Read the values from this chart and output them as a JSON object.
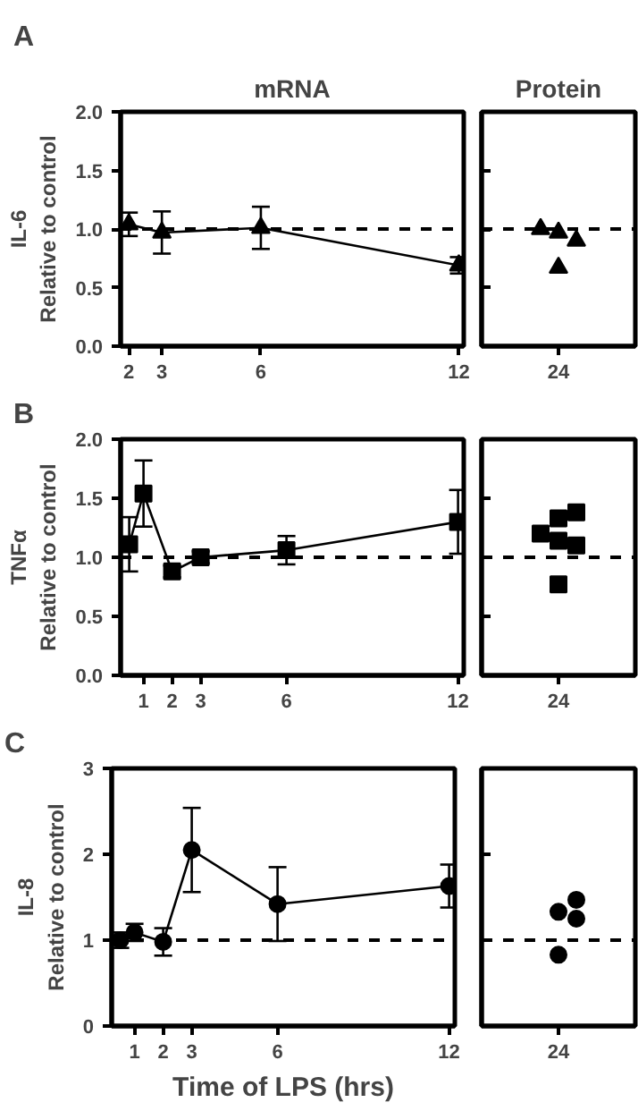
{
  "chart_data": [
    {
      "type": "line",
      "title": "mRNA",
      "annotations": [
        "A"
      ],
      "ylabel": "IL-6\nRelative to control",
      "x": [
        2,
        3,
        6,
        12
      ],
      "values": [
        1.04,
        0.97,
        1.01,
        0.69
      ],
      "errors": [
        0.1,
        0.18,
        0.18,
        0.07
      ],
      "color": "#000000",
      "marker": "triangle",
      "xlim": [
        1.75,
        12.15
      ],
      "xticks": [
        2,
        3,
        6,
        12
      ],
      "ylim": [
        0,
        2
      ],
      "yticks": [
        {
          "value": 0,
          "label": "0.0"
        },
        0.5,
        {
          "value": 1,
          "label": "1.0"
        },
        1.5,
        {
          "value": 2,
          "label": "2.0"
        }
      ],
      "ref_lines": [
        {
          "axis": "y",
          "value": 1,
          "line_style": "dashed"
        }
      ]
    },
    {
      "type": "scatter",
      "title": "Protein",
      "categories": [
        "24"
      ],
      "series": [
        {
          "x": [
            "24",
            "24",
            "24",
            "24"
          ],
          "values": [
            0.97,
            0.9,
            0.67,
            1.0
          ]
        }
      ],
      "color": "#000000",
      "marker": "triangle",
      "ylim": [
        0,
        2
      ],
      "yticks": [
        0,
        0.5,
        1,
        1.5,
        2
      ],
      "tick_labels": "x",
      "ref_lines": [
        {
          "axis": "y",
          "value": 1,
          "line_style": "dashed"
        }
      ]
    },
    {
      "type": "line",
      "annotations": [
        "B"
      ],
      "ylabel": "TNFα\nRelative to control",
      "x": [
        0.5,
        1,
        2,
        3,
        6,
        12
      ],
      "values": [
        1.11,
        1.54,
        0.88,
        1.0,
        1.06,
        1.3
      ],
      "errors": [
        0.23,
        0.28,
        0.05,
        0.05,
        0.12,
        0.27
      ],
      "color": "#000000",
      "marker": "square",
      "xlim": [
        0.2,
        12.2
      ],
      "xticks": [
        1,
        2,
        3,
        6,
        12
      ],
      "ylim": [
        0,
        2
      ],
      "yticks": [
        {
          "value": 0,
          "label": "0.0"
        },
        0.5,
        {
          "value": 1,
          "label": "1.0"
        },
        1.5,
        {
          "value": 2,
          "label": "2.0"
        }
      ],
      "ref_lines": [
        {
          "axis": "y",
          "value": 1,
          "line_style": "dashed"
        }
      ]
    },
    {
      "type": "scatter",
      "categories": [
        "24"
      ],
      "series": [
        {
          "x": [
            "24",
            "24",
            "24",
            "24",
            "24",
            "24"
          ],
          "values": [
            1.14,
            1.33,
            1.1,
            1.38,
            1.2,
            0.77
          ]
        }
      ],
      "color": "#000000",
      "marker": "square",
      "ylim": [
        0,
        2
      ],
      "yticks": [
        0,
        0.5,
        1,
        1.5,
        2
      ],
      "tick_labels": "x",
      "ref_lines": [
        {
          "axis": "y",
          "value": 1,
          "line_style": "dashed"
        }
      ]
    },
    {
      "type": "line",
      "annotations": [
        "C"
      ],
      "ylabel": "IL-8\nRelative to control",
      "xlabel": "Time of LPS (hrs)",
      "x": [
        0.5,
        1,
        2,
        3,
        6,
        12
      ],
      "values": [
        1.0,
        1.09,
        0.98,
        2.05,
        1.42,
        1.63
      ],
      "errors": [
        0.09,
        0.1,
        0.16,
        0.49,
        0.43,
        0.25
      ],
      "color": "#000000",
      "marker": "circle",
      "xlim": [
        0.2,
        12.2
      ],
      "xticks": [
        1,
        2,
        3,
        6,
        12
      ],
      "ylim": [
        0,
        3
      ],
      "yticks": [
        0,
        1,
        2,
        3
      ],
      "ref_lines": [
        {
          "axis": "y",
          "value": 1,
          "line_style": "dashed"
        }
      ]
    },
    {
      "type": "scatter",
      "categories": [
        "24"
      ],
      "series": [
        {
          "x": [
            "24",
            "24",
            "24",
            "24"
          ],
          "values": [
            1.33,
            1.25,
            0.83,
            1.47
          ]
        }
      ],
      "color": "#000000",
      "marker": "circle",
      "ylim": [
        0,
        3
      ],
      "yticks": [
        0,
        1,
        2,
        3
      ],
      "tick_labels": "x",
      "ref_lines": [
        {
          "axis": "y",
          "value": 1,
          "line_style": "dashed"
        }
      ]
    }
  ]
}
